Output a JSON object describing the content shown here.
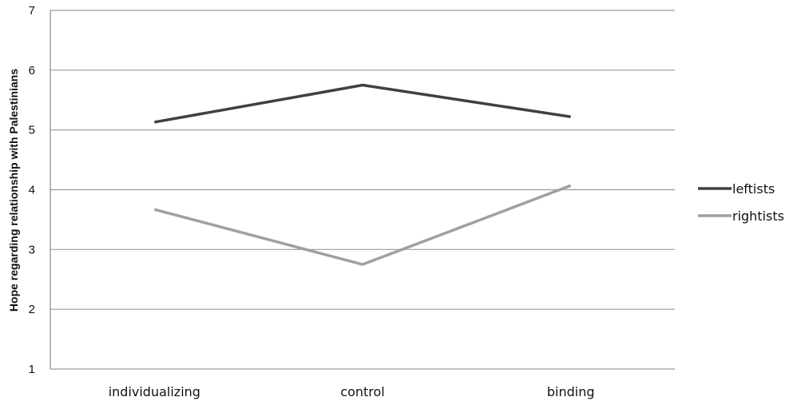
{
  "chart_data": {
    "type": "line",
    "categories": [
      "individualizing",
      "control",
      "binding"
    ],
    "series": [
      {
        "name": "leftists",
        "values": [
          5.13,
          5.75,
          5.22
        ],
        "color": "#404040"
      },
      {
        "name": "rightists",
        "values": [
          3.67,
          2.75,
          4.07
        ],
        "color": "#a0a0a0"
      }
    ],
    "title": "",
    "xlabel": "",
    "ylabel": "Hope regarding relationship with Palestinians",
    "ylim": [
      1,
      7
    ],
    "yticks": [
      1,
      2,
      3,
      4,
      5,
      6,
      7
    ],
    "grid": true,
    "legend_position": "right"
  }
}
